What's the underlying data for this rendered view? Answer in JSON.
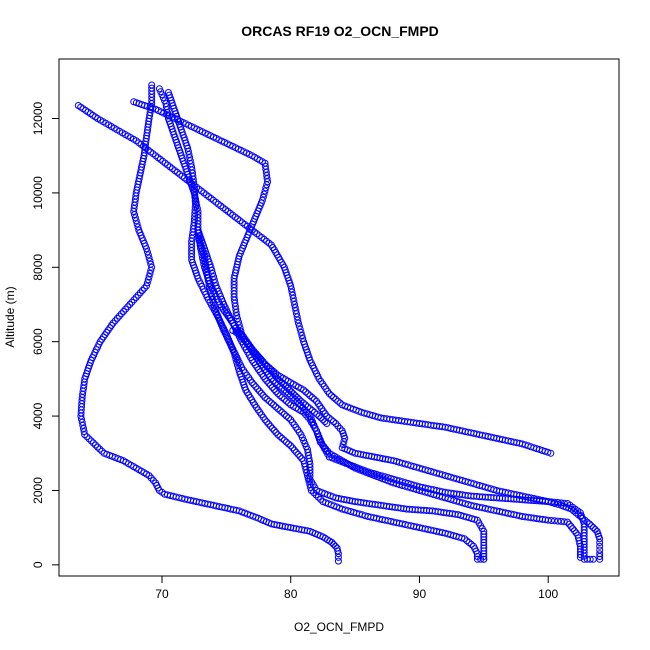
{
  "chart_data": {
    "type": "scatter",
    "title": "ORCAS RF19 O2_OCN_FMPD",
    "xlabel": "O2_OCN_FMPD",
    "ylabel": "Altitude (m)",
    "xlim": [
      62,
      105.5
    ],
    "ylim": [
      -300,
      13600
    ],
    "x_ticks": [
      70,
      80,
      90,
      100
    ],
    "y_ticks": [
      0,
      2000,
      4000,
      6000,
      8000,
      10000,
      12000
    ],
    "grid": false,
    "legend": "none",
    "marker": "open-circle",
    "color": "#0000ff",
    "series": [
      {
        "points": [
          [
            69.2,
            12900
          ],
          [
            69.2,
            12400
          ],
          [
            69.0,
            12000
          ],
          [
            68.6,
            11000
          ],
          [
            68.0,
            10000
          ],
          [
            67.8,
            9500
          ],
          [
            68.2,
            9000
          ],
          [
            68.8,
            8500
          ],
          [
            69.2,
            8000
          ],
          [
            68.8,
            7500
          ],
          [
            67.5,
            7000
          ],
          [
            66.2,
            6500
          ],
          [
            65.2,
            6000
          ],
          [
            64.5,
            5500
          ],
          [
            64.0,
            5000
          ],
          [
            63.8,
            4500
          ],
          [
            63.7,
            4000
          ],
          [
            64.0,
            3500
          ],
          [
            65.5,
            3000
          ],
          [
            67.0,
            2800
          ],
          [
            68.0,
            2600
          ],
          [
            69.0,
            2400
          ],
          [
            69.5,
            2200
          ],
          [
            69.8,
            2000
          ],
          [
            70.2,
            1900
          ],
          [
            72.0,
            1750
          ],
          [
            74.0,
            1600
          ],
          [
            76.0,
            1450
          ],
          [
            77.5,
            1250
          ],
          [
            78.5,
            1100
          ],
          [
            80.0,
            1000
          ],
          [
            81.5,
            900
          ],
          [
            82.5,
            750
          ],
          [
            83.2,
            600
          ],
          [
            83.6,
            450
          ],
          [
            83.7,
            300
          ],
          [
            83.7,
            100
          ]
        ]
      },
      {
        "points": [
          [
            63.5,
            12350
          ],
          [
            65.0,
            12000
          ],
          [
            66.5,
            11700
          ],
          [
            68.0,
            11400
          ],
          [
            69.5,
            11000
          ],
          [
            71.0,
            10600
          ],
          [
            72.5,
            10200
          ],
          [
            74.0,
            9800
          ],
          [
            75.5,
            9400
          ],
          [
            77.0,
            9000
          ],
          [
            78.5,
            8600
          ],
          [
            79.5,
            8000
          ],
          [
            80.0,
            7500
          ],
          [
            80.3,
            7000
          ],
          [
            80.6,
            6500
          ],
          [
            81.0,
            6000
          ],
          [
            81.5,
            5500
          ],
          [
            82.2,
            5000
          ],
          [
            83.0,
            4600
          ],
          [
            84.0,
            4300
          ],
          [
            85.5,
            4100
          ],
          [
            87.0,
            3950
          ],
          [
            90.0,
            3800
          ],
          [
            92.0,
            3700
          ],
          [
            94.0,
            3550
          ],
          [
            96.0,
            3400
          ],
          [
            98.0,
            3250
          ],
          [
            100.2,
            3000
          ]
        ]
      },
      {
        "points": [
          [
            67.8,
            12450
          ],
          [
            69.5,
            12250
          ],
          [
            71.0,
            12000
          ],
          [
            72.5,
            11750
          ],
          [
            74.0,
            11500
          ],
          [
            75.5,
            11250
          ],
          [
            77.0,
            11000
          ],
          [
            78.0,
            10800
          ],
          [
            78.2,
            10300
          ],
          [
            77.8,
            9800
          ],
          [
            77.2,
            9300
          ],
          [
            76.6,
            8800
          ],
          [
            76.0,
            8300
          ],
          [
            75.6,
            7700
          ],
          [
            75.6,
            7200
          ],
          [
            75.8,
            6700
          ],
          [
            76.2,
            6200
          ],
          [
            77.0,
            5800
          ],
          [
            78.0,
            5400
          ],
          [
            79.0,
            5100
          ],
          [
            80.0,
            4900
          ],
          [
            81.0,
            4700
          ],
          [
            82.0,
            4400
          ],
          [
            82.8,
            4000
          ],
          [
            83.5,
            3800
          ],
          [
            84.0,
            3600
          ],
          [
            84.2,
            3400
          ],
          [
            84.0,
            3150
          ],
          [
            85.0,
            3000
          ],
          [
            86.5,
            2900
          ],
          [
            88.0,
            2800
          ],
          [
            90.0,
            2600
          ],
          [
            92.0,
            2400
          ],
          [
            94.0,
            2200
          ],
          [
            96.0,
            2000
          ],
          [
            98.0,
            1850
          ],
          [
            100.0,
            1700
          ],
          [
            101.0,
            1600
          ],
          [
            101.8,
            1500
          ],
          [
            102.5,
            1300
          ],
          [
            103.2,
            1100
          ],
          [
            103.8,
            900
          ],
          [
            104.0,
            700
          ],
          [
            104.0,
            500
          ],
          [
            104.0,
            300
          ],
          [
            104.0,
            150
          ]
        ]
      },
      {
        "points": [
          [
            69.8,
            12800
          ],
          [
            70.3,
            12400
          ],
          [
            70.5,
            12000
          ],
          [
            71.0,
            11500
          ],
          [
            71.5,
            11000
          ],
          [
            72.0,
            10500
          ],
          [
            72.5,
            10000
          ],
          [
            72.8,
            9500
          ],
          [
            72.8,
            9000
          ],
          [
            73.0,
            8500
          ],
          [
            73.3,
            8000
          ],
          [
            73.8,
            7500
          ],
          [
            74.5,
            7000
          ],
          [
            75.5,
            6500
          ],
          [
            76.5,
            6000
          ],
          [
            77.5,
            5500
          ],
          [
            78.5,
            5000
          ],
          [
            79.5,
            4700
          ],
          [
            80.5,
            4400
          ],
          [
            81.5,
            4000
          ],
          [
            82.0,
            3600
          ],
          [
            82.5,
            3200
          ],
          [
            83.0,
            2900
          ],
          [
            84.5,
            2700
          ],
          [
            86.0,
            2500
          ],
          [
            88.0,
            2300
          ],
          [
            90.0,
            2100
          ],
          [
            92.0,
            1950
          ],
          [
            94.0,
            1850
          ],
          [
            96.0,
            1800
          ],
          [
            98.0,
            1750
          ],
          [
            100.0,
            1700
          ],
          [
            101.5,
            1650
          ],
          [
            102.5,
            1400
          ],
          [
            102.8,
            1100
          ],
          [
            102.8,
            700
          ],
          [
            102.8,
            400
          ],
          [
            102.8,
            150
          ],
          [
            103.5,
            150
          ]
        ]
      },
      {
        "points": [
          [
            72.8,
            9000
          ],
          [
            73.3,
            8500
          ],
          [
            73.8,
            8000
          ],
          [
            74.2,
            7500
          ],
          [
            74.8,
            7000
          ],
          [
            75.5,
            6500
          ],
          [
            76.2,
            6000
          ],
          [
            77.0,
            5500
          ],
          [
            78.0,
            5000
          ],
          [
            79.0,
            4600
          ],
          [
            80.0,
            4300
          ],
          [
            81.0,
            4100
          ],
          [
            81.5,
            3900
          ],
          [
            82.0,
            3600
          ],
          [
            82.3,
            3300
          ],
          [
            83.0,
            3000
          ],
          [
            84.0,
            2800
          ],
          [
            85.0,
            2600
          ],
          [
            86.5,
            2400
          ],
          [
            88.0,
            2200
          ],
          [
            90.0,
            2000
          ],
          [
            92.0,
            1800
          ],
          [
            94.0,
            1600
          ],
          [
            96.0,
            1450
          ],
          [
            98.0,
            1300
          ],
          [
            100.0,
            1200
          ],
          [
            101.5,
            1150
          ],
          [
            102.3,
            800
          ],
          [
            102.5,
            500
          ],
          [
            102.5,
            200
          ]
        ]
      },
      {
        "points": [
          [
            70.5,
            12700
          ],
          [
            71.0,
            12200
          ],
          [
            71.5,
            11700
          ],
          [
            72.0,
            11200
          ],
          [
            72.3,
            10700
          ],
          [
            72.5,
            10200
          ],
          [
            72.6,
            9700
          ],
          [
            72.5,
            9200
          ],
          [
            72.3,
            8700
          ],
          [
            72.3,
            8200
          ],
          [
            72.8,
            7700
          ],
          [
            73.5,
            7200
          ],
          [
            74.3,
            6700
          ],
          [
            75.0,
            6200
          ],
          [
            75.6,
            5700
          ],
          [
            76.0,
            5200
          ],
          [
            76.5,
            4700
          ],
          [
            77.2,
            4300
          ],
          [
            78.0,
            3900
          ],
          [
            79.0,
            3500
          ],
          [
            80.0,
            3200
          ],
          [
            81.0,
            2800
          ],
          [
            81.3,
            2400
          ],
          [
            81.6,
            2000
          ],
          [
            82.5,
            1700
          ],
          [
            84.0,
            1500
          ],
          [
            86.0,
            1300
          ],
          [
            88.0,
            1150
          ],
          [
            90.0,
            1000
          ],
          [
            92.0,
            850
          ],
          [
            93.5,
            700
          ],
          [
            94.2,
            500
          ],
          [
            94.5,
            300
          ],
          [
            94.5,
            150
          ],
          [
            95.0,
            150
          ]
        ]
      },
      {
        "points": [
          [
            72.8,
            8800
          ],
          [
            73.3,
            8300
          ],
          [
            73.5,
            7800
          ],
          [
            73.8,
            7300
          ],
          [
            74.2,
            6800
          ],
          [
            74.8,
            6300
          ],
          [
            75.5,
            5800
          ],
          [
            76.2,
            5300
          ],
          [
            77.0,
            4900
          ],
          [
            78.0,
            4500
          ],
          [
            79.0,
            4200
          ],
          [
            80.0,
            3900
          ],
          [
            80.8,
            3500
          ],
          [
            81.3,
            3100
          ],
          [
            81.5,
            2700
          ],
          [
            81.5,
            2300
          ],
          [
            82.0,
            2000
          ],
          [
            83.5,
            1800
          ],
          [
            85.0,
            1700
          ],
          [
            87.0,
            1600
          ],
          [
            89.0,
            1500
          ],
          [
            91.0,
            1450
          ],
          [
            93.0,
            1350
          ],
          [
            94.5,
            1200
          ],
          [
            95.0,
            900
          ],
          [
            95.0,
            600
          ],
          [
            95.0,
            300
          ],
          [
            95.0,
            150
          ]
        ]
      },
      {
        "points": [
          [
            75.5,
            6300
          ],
          [
            76.0,
            6200
          ],
          [
            76.5,
            6000
          ],
          [
            77.0,
            5800
          ],
          [
            77.5,
            5600
          ],
          [
            78.0,
            5400
          ],
          [
            78.5,
            5200
          ],
          [
            79.0,
            5000
          ],
          [
            79.6,
            4800
          ],
          [
            80.2,
            4600
          ],
          [
            80.8,
            4400
          ],
          [
            81.5,
            4200
          ],
          [
            82.2,
            4000
          ],
          [
            82.8,
            3800
          ]
        ]
      }
    ]
  }
}
